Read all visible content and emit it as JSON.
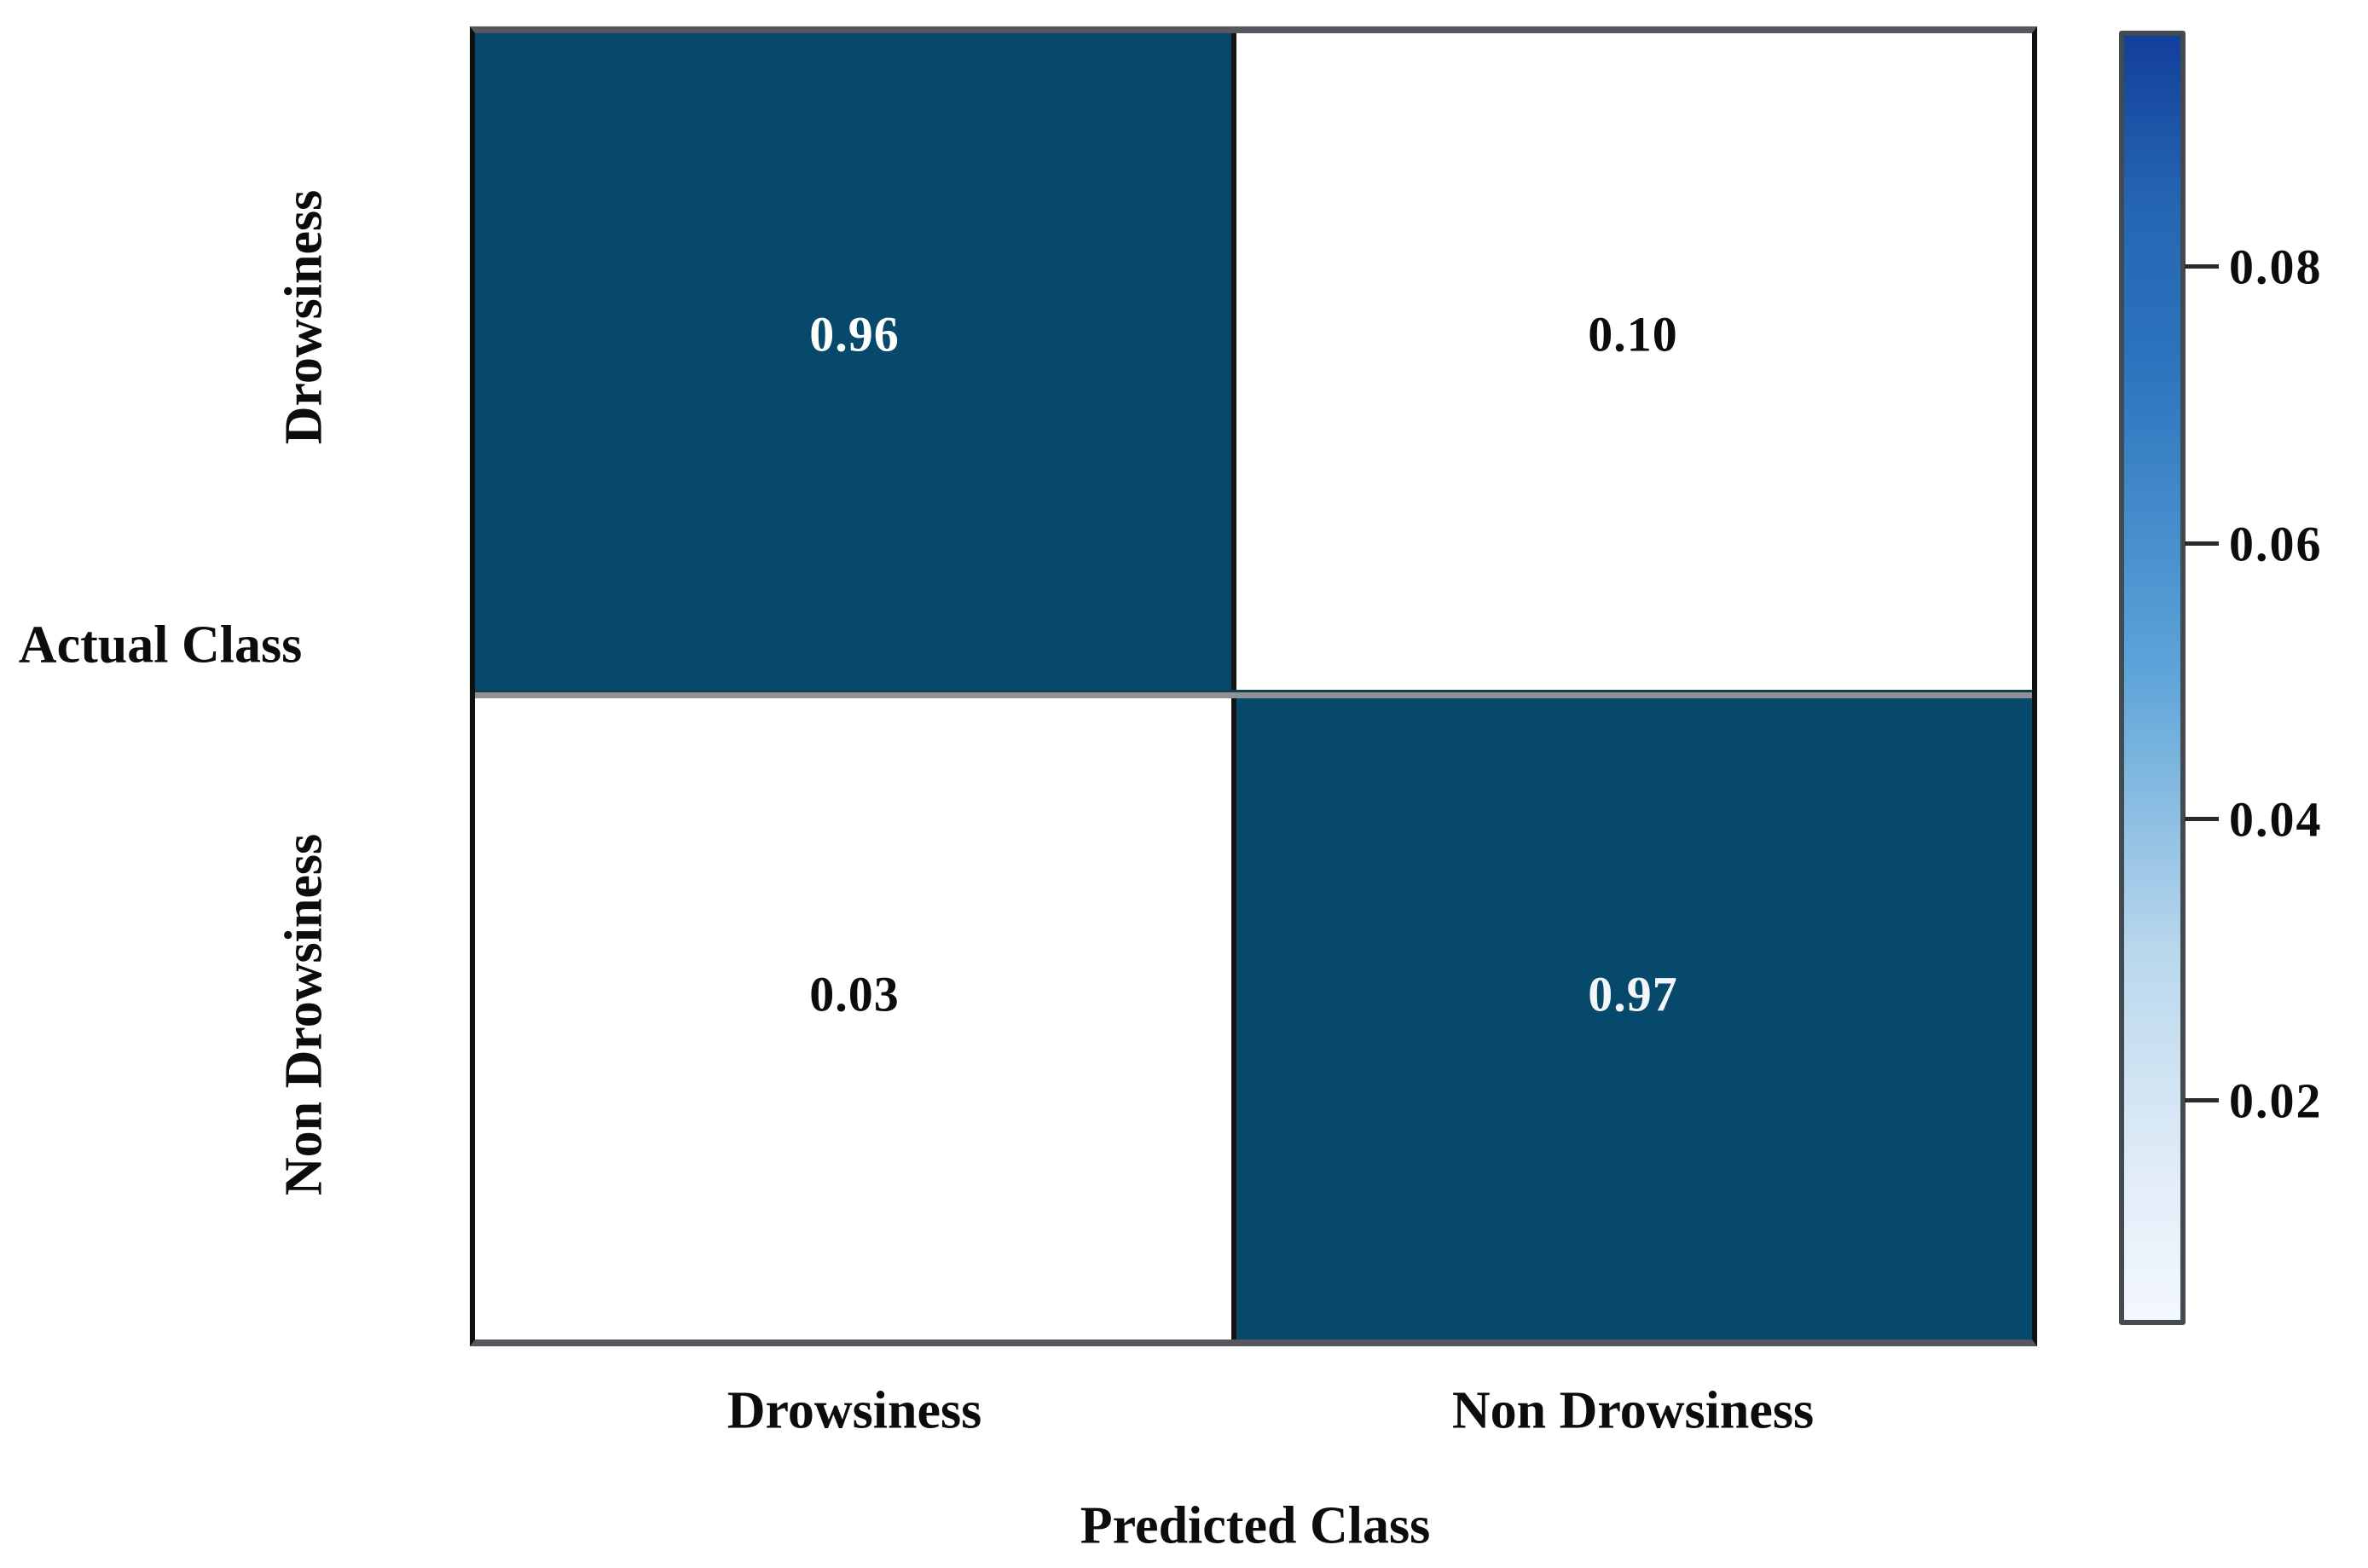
{
  "chart_data": {
    "type": "heatmap",
    "title": "",
    "xlabel": "Predicted Class",
    "ylabel": "Actual Class",
    "x_categories": [
      "Drowsiness",
      "Non Drowsiness"
    ],
    "y_categories": [
      "Drowsiness",
      "Non Drowsiness"
    ],
    "matrix": [
      [
        0.96,
        0.1
      ],
      [
        0.03,
        0.97
      ]
    ],
    "cell_labels": [
      [
        "0.96",
        "0.10"
      ],
      [
        "0.03",
        "0.97"
      ]
    ],
    "legend_position": "right",
    "grid": false,
    "colorbar": {
      "orientation": "vertical",
      "tick_labels": [
        "0.08",
        "0.06",
        "0.04",
        "0.02"
      ],
      "tick_values": [
        0.08,
        0.06,
        0.04,
        0.02
      ],
      "approx_range": [
        0.004,
        0.098
      ]
    },
    "colors": {
      "cell_dark": "#07496a",
      "cell_light": "#ffffff",
      "value_on_dark": "#ffffff",
      "value_on_light": "#0c0c0c",
      "colorbar_gradient_top_to_bottom": [
        "#123f9b",
        "#2566b3",
        "#2b73bd",
        "#5ba3d8",
        "#b8d7ec",
        "#e2edf8",
        "#f3f8fd"
      ]
    }
  }
}
